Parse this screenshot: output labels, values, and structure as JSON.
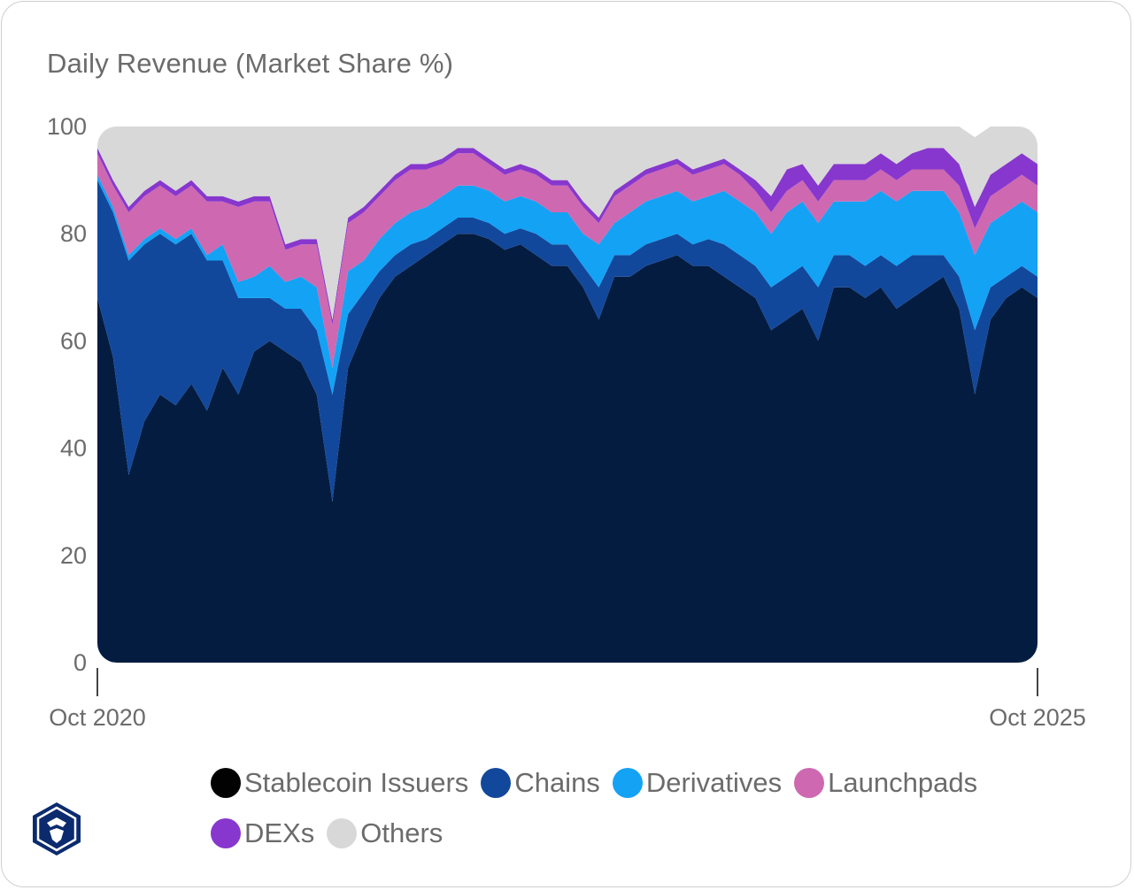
{
  "chart_data": {
    "type": "area",
    "stacked": true,
    "normalized": true,
    "title": "Daily Revenue (Market Share %)",
    "xlabel": "",
    "ylabel": "",
    "ylim": [
      0,
      100
    ],
    "yticks": [
      "0",
      "20",
      "40",
      "60",
      "80",
      "100"
    ],
    "x_tick_labels": [
      "Oct 2020",
      "Oct 2025"
    ],
    "x_range": [
      "2020-10",
      "2025-10"
    ],
    "x": [
      "2020-10",
      "2020-11",
      "2020-12",
      "2021-01",
      "2021-02",
      "2021-03",
      "2021-04",
      "2021-05",
      "2021-06",
      "2021-07",
      "2021-08",
      "2021-09",
      "2021-10",
      "2021-11",
      "2021-12",
      "2022-01",
      "2022-02",
      "2022-03",
      "2022-04",
      "2022-05",
      "2022-06",
      "2022-07",
      "2022-08",
      "2022-09",
      "2022-10",
      "2022-11",
      "2022-12",
      "2023-01",
      "2023-02",
      "2023-03",
      "2023-04",
      "2023-05",
      "2023-06",
      "2023-07",
      "2023-08",
      "2023-09",
      "2023-10",
      "2023-11",
      "2023-12",
      "2024-01",
      "2024-02",
      "2024-03",
      "2024-04",
      "2024-05",
      "2024-06",
      "2024-07",
      "2024-08",
      "2024-09",
      "2024-10",
      "2024-11",
      "2024-12",
      "2025-01",
      "2025-02",
      "2025-03",
      "2025-04",
      "2025-05",
      "2025-06",
      "2025-07",
      "2025-08",
      "2025-09",
      "2025-10"
    ],
    "series": [
      {
        "name": "Stablecoin Issuers",
        "color": "#041c40",
        "values": [
          68,
          57,
          35,
          45,
          50,
          48,
          52,
          47,
          55,
          50,
          58,
          60,
          58,
          56,
          50,
          30,
          55,
          62,
          68,
          72,
          74,
          76,
          78,
          80,
          80,
          79,
          77,
          78,
          76,
          74,
          74,
          70,
          64,
          72,
          72,
          74,
          75,
          76,
          74,
          74,
          72,
          70,
          68,
          62,
          64,
          66,
          60,
          70,
          70,
          68,
          70,
          66,
          68,
          70,
          72,
          66,
          50,
          64,
          68,
          70,
          68
        ]
      },
      {
        "name": "Chains",
        "color": "#12489b",
        "values": [
          22,
          27,
          40,
          33,
          30,
          30,
          28,
          28,
          20,
          18,
          10,
          8,
          8,
          10,
          12,
          20,
          10,
          7,
          5,
          4,
          4,
          3,
          3,
          3,
          3,
          3,
          3,
          3,
          4,
          4,
          4,
          4,
          6,
          4,
          4,
          4,
          4,
          4,
          4,
          5,
          6,
          6,
          6,
          8,
          8,
          8,
          10,
          6,
          6,
          6,
          6,
          8,
          8,
          6,
          4,
          6,
          12,
          6,
          4,
          4,
          4
        ]
      },
      {
        "name": "Derivatives",
        "color": "#14a2f5",
        "values": [
          1,
          1,
          1,
          1,
          1,
          1,
          1,
          1,
          3,
          3,
          4,
          6,
          5,
          6,
          8,
          5,
          8,
          6,
          6,
          6,
          6,
          6,
          6,
          6,
          6,
          6,
          6,
          6,
          6,
          6,
          6,
          6,
          8,
          6,
          8,
          8,
          8,
          8,
          8,
          8,
          10,
          10,
          10,
          10,
          12,
          12,
          12,
          10,
          10,
          12,
          12,
          12,
          12,
          12,
          12,
          12,
          14,
          12,
          12,
          12,
          12
        ]
      },
      {
        "name": "Launchpads",
        "color": "#ce68b1",
        "values": [
          4,
          4,
          8,
          8,
          8,
          8,
          8,
          10,
          8,
          14,
          14,
          12,
          6,
          6,
          8,
          8,
          9,
          9,
          8,
          8,
          8,
          7,
          6,
          6,
          6,
          5,
          5,
          5,
          5,
          5,
          5,
          5,
          4,
          5,
          5,
          5,
          5,
          5,
          5,
          5,
          5,
          5,
          4,
          4,
          4,
          4,
          4,
          4,
          4,
          4,
          4,
          4,
          4,
          4,
          4,
          5,
          5,
          5,
          5,
          5,
          5
        ]
      },
      {
        "name": "DEXs",
        "color": "#8737cd",
        "values": [
          1,
          1,
          1,
          1,
          1,
          1,
          1,
          1,
          1,
          1,
          1,
          1,
          1,
          1,
          1,
          1,
          1,
          1,
          1,
          1,
          1,
          1,
          1,
          1,
          1,
          1,
          1,
          1,
          1,
          1,
          1,
          1,
          1,
          1,
          1,
          1,
          1,
          1,
          1,
          1,
          1,
          1,
          2,
          3,
          4,
          3,
          3,
          3,
          3,
          3,
          3,
          3,
          3,
          4,
          4,
          4,
          4,
          4,
          4,
          4,
          4
        ]
      },
      {
        "name": "Others",
        "color": "#d8d8d8",
        "values": [
          4,
          10,
          15,
          12,
          10,
          12,
          10,
          13,
          13,
          14,
          13,
          13,
          22,
          21,
          21,
          36,
          17,
          15,
          12,
          9,
          7,
          7,
          6,
          4,
          4,
          6,
          8,
          7,
          8,
          10,
          10,
          14,
          17,
          12,
          10,
          8,
          7,
          6,
          8,
          7,
          6,
          8,
          10,
          13,
          8,
          7,
          11,
          7,
          7,
          7,
          5,
          7,
          5,
          4,
          4,
          7,
          13,
          9,
          7,
          5,
          7
        ]
      }
    ]
  },
  "legend": {
    "items": [
      {
        "label": "Stablecoin Issuers",
        "color": "#020202"
      },
      {
        "label": "Chains",
        "color": "#12489b"
      },
      {
        "label": "Derivatives",
        "color": "#14a2f5"
      },
      {
        "label": "Launchpads",
        "color": "#ce68b1"
      },
      {
        "label": "DEXs",
        "color": "#8737cd"
      },
      {
        "label": "Others",
        "color": "#d8d8d8"
      }
    ]
  },
  "brand": {
    "logo_icon": "crypto-com-shield-logo",
    "color": "#0b2b6e"
  }
}
